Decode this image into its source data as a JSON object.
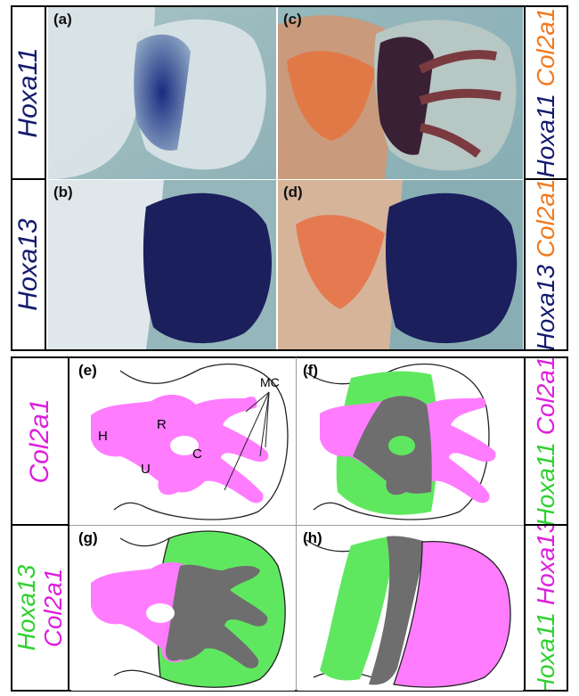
{
  "photos": {
    "a": {
      "letter": "(a)"
    },
    "b": {
      "letter": "(b)"
    },
    "c": {
      "letter": "(c)"
    },
    "d": {
      "letter": "(d)"
    }
  },
  "row_labels_top": {
    "left_1": "Hoxa11",
    "left_2": "Hoxa13",
    "right_1": {
      "line1": "Hoxa11",
      "line2": "Col2a1"
    },
    "right_2": {
      "line1": "Hoxa13",
      "line2": "Col2a1"
    }
  },
  "diagrams": {
    "e": {
      "letter": "(e)",
      "labels": {
        "H": "H",
        "R": "R",
        "U": "U",
        "C": "C",
        "MC": "MC"
      }
    },
    "f": {
      "letter": "(f)"
    },
    "g": {
      "letter": "(g)"
    },
    "h": {
      "letter": "(h)"
    }
  },
  "row_labels_bottom": {
    "left_1": "Col2a1",
    "left_2": {
      "line1": "Hoxa13",
      "line2": "Col2a1"
    },
    "right_1": {
      "line1": "Hoxa11",
      "line2": "Col2a1"
    },
    "right_2": {
      "line1": "Hoxa11",
      "line2": "Hoxa13"
    }
  },
  "colors": {
    "hoxa_stain": "#141a6e",
    "col2a1_stain": "#f07a20",
    "green": "#2fd12f",
    "magenta": "#dd1fdd",
    "overlap_gray": "#6e6e6e",
    "photo_bg": "#7fa7ae"
  }
}
